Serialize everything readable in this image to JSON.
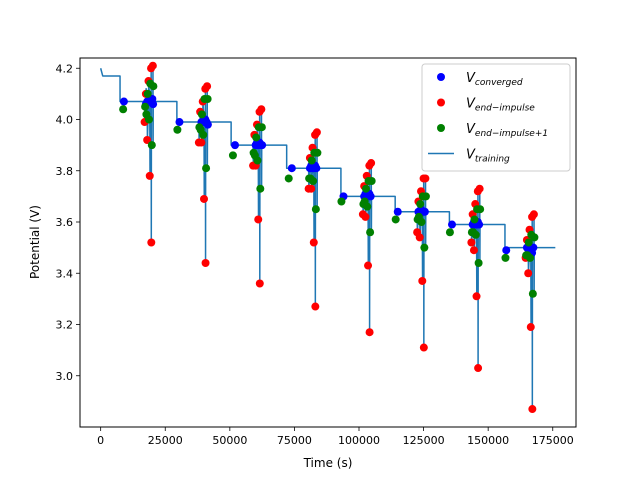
{
  "chart_data": {
    "type": "scatter",
    "xlabel": "Time (s)",
    "ylabel": "Potential (V)",
    "xlim": [
      -8000,
      184000
    ],
    "ylim": [
      2.8,
      4.24
    ],
    "xticks": [
      0,
      25000,
      50000,
      75000,
      100000,
      125000,
      150000,
      175000
    ],
    "yticks": [
      3.0,
      3.2,
      3.4,
      3.6,
      3.8,
      4.0,
      4.2
    ],
    "grid": false,
    "legend": {
      "placement": "top-right",
      "entries": [
        {
          "base": "V",
          "sub": "converged",
          "marker": "dot",
          "color": "#0000ff"
        },
        {
          "base": "V",
          "sub": "end−impulse",
          "marker": "dot",
          "color": "#ff0000"
        },
        {
          "base": "V",
          "sub": "end−impulse+1",
          "marker": "dot",
          "color": "#008000"
        },
        {
          "base": "V",
          "sub": "training",
          "marker": "line",
          "color": "#1f77b4"
        }
      ]
    },
    "series": [
      {
        "key": "training",
        "color": "#1f77b4",
        "x": [
          0,
          800,
          1600,
          7500,
          7500,
          17000,
          17100,
          17500,
          17600,
          18000,
          18100,
          18500,
          18600,
          19000,
          19100,
          19500,
          19550,
          19600,
          19650,
          20200,
          20250,
          20300,
          20350,
          29500,
          29500,
          38000,
          38100,
          38500,
          38600,
          39000,
          39100,
          39500,
          39600,
          40000,
          40100,
          40500,
          40550,
          40600,
          40650,
          41200,
          41250,
          41300,
          41350,
          50500,
          50500,
          59000,
          59100,
          59500,
          59600,
          60000,
          60100,
          60500,
          60600,
          61000,
          61100,
          61500,
          61550,
          61600,
          61650,
          62200,
          62250,
          62300,
          62350,
          72000,
          72000,
          80500,
          80600,
          81000,
          81100,
          81500,
          81600,
          82000,
          82100,
          82500,
          82600,
          83000,
          83050,
          83100,
          83150,
          83700,
          83750,
          83800,
          83850,
          93000,
          93000,
          101500,
          101600,
          102000,
          102100,
          102500,
          102600,
          103000,
          103100,
          103500,
          103600,
          104000,
          104050,
          104100,
          104150,
          104700,
          104750,
          104800,
          104850,
          114000,
          114000,
          122500,
          122600,
          123000,
          123100,
          123500,
          123600,
          124000,
          124100,
          124500,
          124600,
          125000,
          125050,
          125100,
          125150,
          125700,
          125750,
          125800,
          125850,
          135000,
          135000,
          143500,
          143600,
          144000,
          144100,
          144500,
          144600,
          145000,
          145100,
          145500,
          145600,
          146000,
          146050,
          146100,
          146150,
          146700,
          146750,
          146800,
          146850,
          156500,
          156500,
          164500,
          164600,
          165000,
          165100,
          165500,
          165600,
          166000,
          166100,
          166500,
          166600,
          167000,
          167050,
          167100,
          167150,
          167700,
          167750,
          167800,
          167850,
          176000
        ],
        "y": [
          4.2,
          4.17,
          4.17,
          4.17,
          4.07,
          4.07,
          3.99,
          4.06,
          4.12,
          4.07,
          3.92,
          4.07,
          4.15,
          4.07,
          3.78,
          4.07,
          4.2,
          3.52,
          4.07,
          4.07,
          4.21,
          3.9,
          4.07,
          4.07,
          3.99,
          3.99,
          3.92,
          3.99,
          4.03,
          3.99,
          3.91,
          3.99,
          4.07,
          3.99,
          3.69,
          3.99,
          4.12,
          3.44,
          3.99,
          3.99,
          4.13,
          3.81,
          3.99,
          3.99,
          3.9,
          3.9,
          3.82,
          3.9,
          3.94,
          3.9,
          3.82,
          3.9,
          3.98,
          3.9,
          3.61,
          3.9,
          4.03,
          3.36,
          3.9,
          3.9,
          4.04,
          3.73,
          3.9,
          3.9,
          3.81,
          3.81,
          3.73,
          3.81,
          3.85,
          3.81,
          3.73,
          3.81,
          3.89,
          3.81,
          3.52,
          3.81,
          3.94,
          3.27,
          3.81,
          3.81,
          3.95,
          3.65,
          3.81,
          3.81,
          3.7,
          3.7,
          3.63,
          3.7,
          3.74,
          3.7,
          3.62,
          3.7,
          3.78,
          3.7,
          3.43,
          3.7,
          3.82,
          3.17,
          3.7,
          3.7,
          3.83,
          3.56,
          3.7,
          3.7,
          3.64,
          3.64,
          3.56,
          3.64,
          3.68,
          3.64,
          3.54,
          3.64,
          3.72,
          3.64,
          3.37,
          3.64,
          3.77,
          3.11,
          3.64,
          3.64,
          3.77,
          3.5,
          3.64,
          3.64,
          3.59,
          3.59,
          3.52,
          3.59,
          3.63,
          3.59,
          3.49,
          3.59,
          3.67,
          3.59,
          3.31,
          3.59,
          3.72,
          3.03,
          3.59,
          3.59,
          3.73,
          3.44,
          3.59,
          3.59,
          3.5,
          3.5,
          3.46,
          3.5,
          3.53,
          3.5,
          3.4,
          3.5,
          3.57,
          3.5,
          3.19,
          3.5,
          3.62,
          2.87,
          3.5,
          3.5,
          3.63,
          3.32,
          3.5,
          3.5
        ]
      },
      {
        "key": "converged",
        "color": "#0000ff",
        "x": [
          9000,
          17500,
          18000,
          18500,
          19000,
          19500,
          20000,
          20300,
          30500,
          39000,
          39500,
          40000,
          40500,
          41000,
          41500,
          52000,
          60000,
          60500,
          61000,
          61500,
          62000,
          62500,
          74000,
          81000,
          81500,
          82000,
          82500,
          83000,
          83500,
          94000,
          102000,
          102500,
          103000,
          103500,
          104000,
          104500,
          115000,
          123000,
          123500,
          124000,
          124500,
          125000,
          125500,
          136000,
          144000,
          144500,
          145000,
          145500,
          146000,
          146500,
          157000,
          165000,
          165500,
          166000,
          166500,
          167000,
          167500
        ],
        "y": [
          4.07,
          4.06,
          4.07,
          4.07,
          4.07,
          4.07,
          4.08,
          4.06,
          3.99,
          3.99,
          3.99,
          3.99,
          4.0,
          3.99,
          3.98,
          3.9,
          3.9,
          3.91,
          3.9,
          3.91,
          3.9,
          3.9,
          3.81,
          3.81,
          3.82,
          3.81,
          3.81,
          3.82,
          3.81,
          3.7,
          3.7,
          3.71,
          3.7,
          3.7,
          3.71,
          3.7,
          3.64,
          3.64,
          3.64,
          3.65,
          3.64,
          3.64,
          3.64,
          3.59,
          3.59,
          3.6,
          3.59,
          3.59,
          3.6,
          3.59,
          3.49,
          3.5,
          3.5,
          3.49,
          3.5,
          3.48,
          3.5
        ]
      },
      {
        "key": "end_impulse",
        "color": "#ff0000",
        "x": [
          17000,
          17500,
          18000,
          18500,
          19000,
          19500,
          19600,
          20200,
          38000,
          38500,
          39000,
          39500,
          40000,
          40500,
          40600,
          41200,
          59000,
          59500,
          60000,
          60500,
          61000,
          61500,
          61600,
          62200,
          80500,
          81000,
          81500,
          82000,
          82500,
          83000,
          83100,
          83700,
          101500,
          102000,
          102500,
          103000,
          103500,
          104000,
          104100,
          104700,
          122500,
          123000,
          123500,
          124000,
          124500,
          125000,
          125100,
          125700,
          143500,
          144000,
          144500,
          145000,
          145500,
          146000,
          146100,
          146700,
          164500,
          165000,
          165500,
          166000,
          166500,
          167000,
          167100,
          167700
        ],
        "y": [
          3.99,
          4.1,
          3.92,
          4.15,
          3.78,
          4.2,
          3.52,
          4.21,
          3.91,
          4.03,
          3.91,
          4.07,
          3.69,
          4.12,
          3.44,
          4.13,
          3.82,
          3.94,
          3.82,
          3.98,
          3.61,
          4.03,
          3.36,
          4.04,
          3.73,
          3.85,
          3.73,
          3.89,
          3.52,
          3.94,
          3.27,
          3.95,
          3.63,
          3.74,
          3.62,
          3.78,
          3.43,
          3.82,
          3.17,
          3.83,
          3.56,
          3.68,
          3.54,
          3.72,
          3.37,
          3.77,
          3.11,
          3.77,
          3.52,
          3.63,
          3.49,
          3.67,
          3.31,
          3.72,
          3.03,
          3.73,
          3.46,
          3.53,
          3.4,
          3.57,
          3.19,
          3.62,
          2.87,
          3.63
        ]
      },
      {
        "key": "end_impulse_plus_1",
        "color": "#008000",
        "x": [
          8700,
          17200,
          17700,
          18200,
          18700,
          19200,
          19800,
          20400,
          29700,
          38200,
          38700,
          39200,
          39700,
          40200,
          40800,
          41400,
          51200,
          59200,
          59700,
          60200,
          60700,
          61200,
          61800,
          62400,
          72800,
          80700,
          81200,
          81700,
          82200,
          82700,
          83300,
          83900,
          93200,
          101700,
          102200,
          102700,
          103200,
          103700,
          104300,
          104900,
          114200,
          122700,
          123200,
          123700,
          124200,
          124700,
          125300,
          125900,
          135200,
          143700,
          144200,
          144700,
          145200,
          145700,
          146300,
          146900,
          156700,
          164700,
          165200,
          165700,
          166200,
          166700,
          167300,
          167900
        ],
        "y": [
          4.04,
          4.05,
          4.02,
          4.1,
          4.0,
          4.14,
          3.9,
          4.13,
          3.96,
          3.97,
          3.96,
          4.02,
          3.94,
          4.08,
          3.81,
          4.08,
          3.86,
          3.87,
          3.86,
          3.93,
          3.84,
          3.97,
          3.73,
          3.97,
          3.77,
          3.77,
          3.77,
          3.84,
          3.76,
          3.87,
          3.65,
          3.87,
          3.68,
          3.67,
          3.68,
          3.73,
          3.66,
          3.76,
          3.56,
          3.76,
          3.61,
          3.61,
          3.62,
          3.67,
          3.6,
          3.7,
          3.5,
          3.7,
          3.56,
          3.56,
          3.56,
          3.61,
          3.55,
          3.65,
          3.44,
          3.65,
          3.46,
          3.47,
          3.47,
          3.52,
          3.46,
          3.55,
          3.32,
          3.54
        ]
      }
    ]
  }
}
